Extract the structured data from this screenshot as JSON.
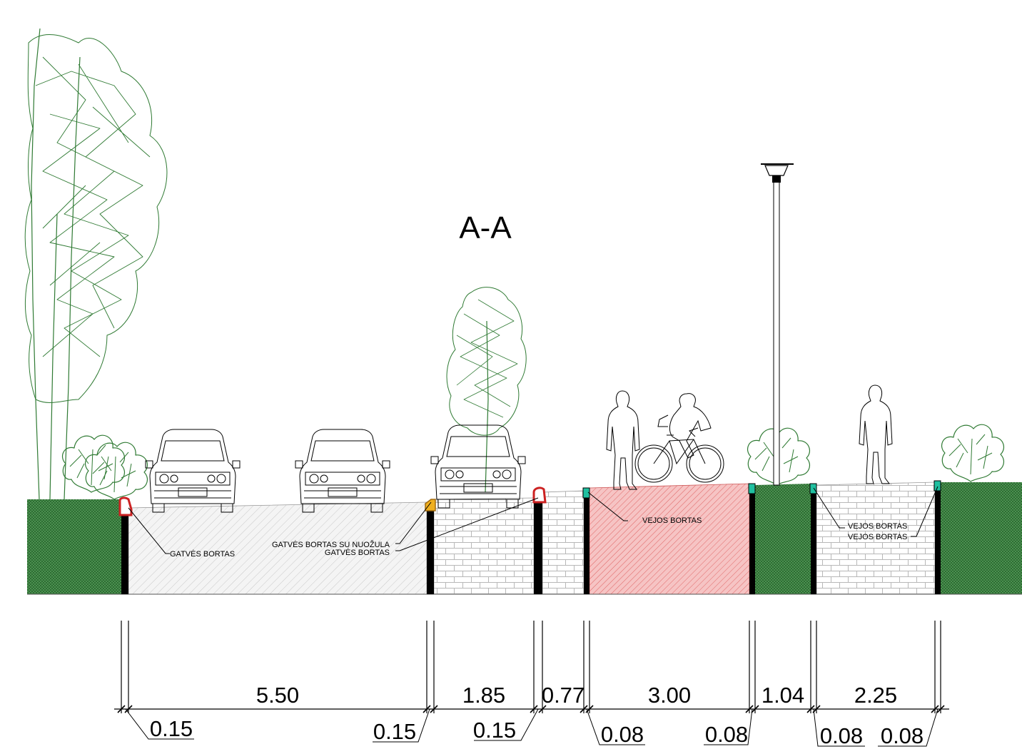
{
  "title": "A-A",
  "colors": {
    "grass": "#3f8a45",
    "grass_dark": "#2e6b33",
    "road_hatch": "#cfcfcf",
    "bike_lane": "#f4b9b9",
    "bike_hatch": "#e86868",
    "curb_red": "#cc2222",
    "curb_yellow": "#f0b020",
    "curb_green": "#20c0a0",
    "tree": "#2f7a33"
  },
  "icons": {
    "vegetation": "tree-icon",
    "car": "car-icon",
    "pedestrian": "pedestrian-icon",
    "cyclist": "cyclist-icon",
    "lamp": "street-lamp-icon"
  },
  "labels": {
    "gatves_bortas": "GATVĖS BORTAS",
    "gatves_bortas_su_nuozula": "GATVĖS BORTAS SU NUOŽULA",
    "gatves_bortas_2": "GATVĖS BORTAS",
    "vejos_bortas": "VEJOS BORTAS",
    "vejos_bortas_2": "VEJOS BORTAS",
    "vejos_bortas_3": "VEJOS BORTAS"
  },
  "dimensions": {
    "main": [
      "5.50",
      "1.85",
      "0.77",
      "3.00",
      "1.04",
      "2.25"
    ],
    "curbs": [
      "0.15",
      "0.15",
      "0.15",
      "0.08",
      "0.08",
      "0.08",
      "0.08"
    ]
  }
}
